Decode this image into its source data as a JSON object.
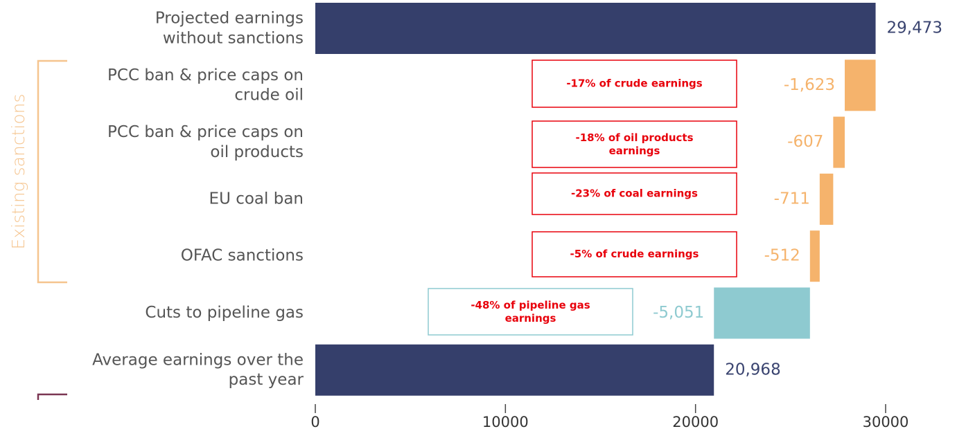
{
  "chart_data": {
    "type": "waterfall",
    "categories": [
      "Projected earnings\nwithout sanctions",
      "PCC ban & price caps on\ncrude oil",
      "PCC ban & price caps on\noil products",
      "EU coal ban",
      "OFAC sanctions",
      "Cuts to pipeline gas",
      "Average earnings over the\npast year"
    ],
    "values": [
      29473,
      -1623,
      -607,
      -711,
      -512,
      -5051,
      20968
    ],
    "value_labels": [
      "29,473",
      "-1,623",
      "-607",
      "-711",
      "-512",
      "-5,051",
      "20,968"
    ],
    "colors": [
      "#353f6b",
      "#f5b36c",
      "#f5b36c",
      "#f5b36c",
      "#f5b36c",
      "#8ecad0",
      "#353f6b"
    ],
    "xlim": [
      0,
      30000
    ],
    "xticks": [
      0,
      10000,
      20000,
      30000
    ],
    "group_label": "Existing sanctions",
    "annotations": [
      {
        "text": "-17% of crude earnings",
        "color": "#e8000b",
        "border": "#e8000b"
      },
      {
        "text": "-18% of oil products\nearnings",
        "color": "#e8000b",
        "border": "#e8000b"
      },
      {
        "text": "-23% of coal earnings",
        "color": "#e8000b",
        "border": "#e8000b"
      },
      {
        "text": "-5% of crude earnings",
        "color": "#e8000b",
        "border": "#e8000b"
      },
      {
        "text": "-48% of pipeline gas\nearnings",
        "color": "#e8000b",
        "border": "#8ecad0"
      }
    ]
  }
}
